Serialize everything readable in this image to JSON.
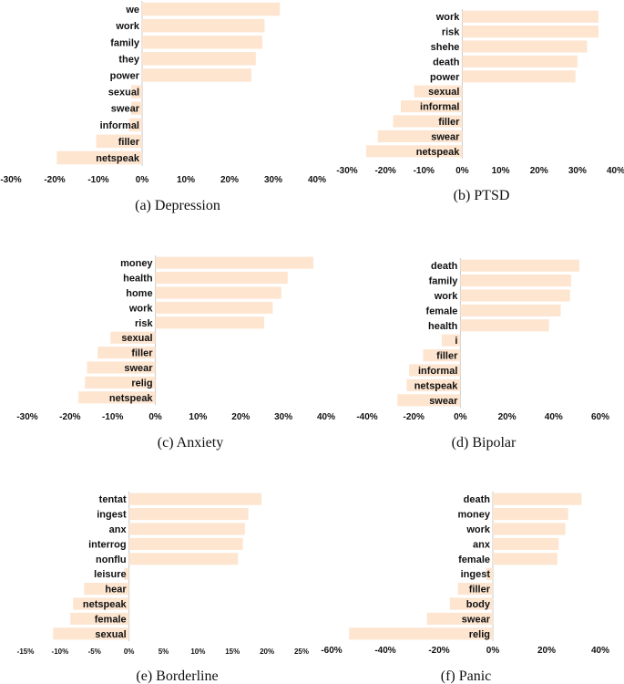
{
  "colors": {
    "bar": "#fde5d0",
    "axis": "#c8c8c8",
    "text": "#111111"
  },
  "chart_data": [
    {
      "type": "bar",
      "orientation": "horizontal",
      "caption": "(a) Depression",
      "categories": [
        "we",
        "work",
        "family",
        "they",
        "power",
        "sexual",
        "swear",
        "informal",
        "filler",
        "netspeak"
      ],
      "values": [
        31.5,
        28,
        27.5,
        26,
        25,
        -2.5,
        -2.5,
        -3,
        -10.5,
        -19.5
      ],
      "xlim": [
        -30,
        40
      ],
      "xticks": [
        "-30%",
        "-20%",
        "-10%",
        "0%",
        "10%",
        "20%",
        "30%",
        "40%"
      ]
    },
    {
      "type": "bar",
      "orientation": "horizontal",
      "caption": "(b) PTSD",
      "categories": [
        "work",
        "risk",
        "shehe",
        "death",
        "power",
        "sexual",
        "informal",
        "filler",
        "swear",
        "netspeak"
      ],
      "values": [
        35.5,
        35.5,
        32.5,
        30,
        29.5,
        -12.5,
        -16,
        -18,
        -22,
        -25
      ],
      "xlim": [
        -30,
        40
      ],
      "xticks": [
        "-30%",
        "-20%",
        "-10%",
        "0%",
        "10%",
        "20%",
        "30%",
        "40%"
      ]
    },
    {
      "type": "bar",
      "orientation": "horizontal",
      "caption": "(c) Anxiety",
      "categories": [
        "money",
        "health",
        "home",
        "work",
        "risk",
        "sexual",
        "filler",
        "swear",
        "relig",
        "netspeak"
      ],
      "values": [
        37,
        31,
        29.5,
        27.5,
        25.5,
        -10.5,
        -13.5,
        -16,
        -16.5,
        -18
      ],
      "xlim": [
        -30,
        40
      ],
      "xticks": [
        "-30%",
        "-20%",
        "-10%",
        "0%",
        "10%",
        "20%",
        "30%",
        "40%"
      ]
    },
    {
      "type": "bar",
      "orientation": "horizontal",
      "caption": "(d) Bipolar",
      "categories": [
        "death",
        "family",
        "work",
        "female",
        "health",
        "i",
        "filler",
        "informal",
        "netspeak",
        "swear"
      ],
      "values": [
        51,
        47.5,
        47,
        43,
        38,
        -8,
        -16,
        -22,
        -23,
        -27
      ],
      "xlim": [
        -40,
        60
      ],
      "xticks": [
        "-40%",
        "-20%",
        "0%",
        "20%",
        "40%",
        "60%"
      ]
    },
    {
      "type": "bar",
      "orientation": "horizontal",
      "caption": "(e) Borderline",
      "categories": [
        "tentat",
        "ingest",
        "anx",
        "interrog",
        "nonflu",
        "leisure",
        "hear",
        "netspeak",
        "female",
        "sexual"
      ],
      "values": [
        19.2,
        17.3,
        16.8,
        16.5,
        15.8,
        -0.7,
        -6.5,
        -8.1,
        -8.5,
        -11
      ],
      "xlim": [
        -15,
        25
      ],
      "xticks": [
        "-15%",
        "-10%",
        "-5%",
        "0%",
        "5%",
        "10%",
        "15%",
        "20%",
        "25%"
      ]
    },
    {
      "type": "bar",
      "orientation": "horizontal",
      "caption": "(f) Panic",
      "categories": [
        "death",
        "money",
        "work",
        "anx",
        "female",
        "ingest",
        "filler",
        "body",
        "swear",
        "relig"
      ],
      "values": [
        33,
        28,
        27,
        24.5,
        24,
        -2.5,
        -13,
        -16,
        -24.5,
        -53.5
      ],
      "xlim": [
        -60,
        40
      ],
      "xticks": [
        "-60%",
        "-40%",
        "-20%",
        "0%",
        "20%",
        "40%"
      ]
    }
  ]
}
